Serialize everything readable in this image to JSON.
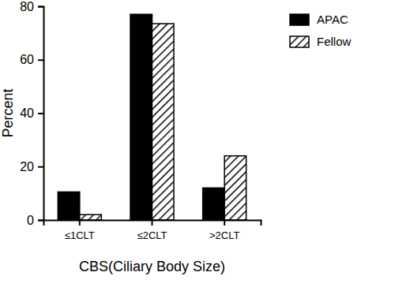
{
  "chart_data": {
    "type": "bar",
    "x_label": "CBS(Ciliary Body Size)",
    "y_label": "Percent",
    "categories": [
      "≤1CLT",
      "≤2CLT",
      ">2CLT"
    ],
    "series": [
      {
        "name": "APAC",
        "color": "#000000",
        "values": [
          10.5,
          77,
          12
        ]
      },
      {
        "name": "Fellow",
        "color": "#000000",
        "marker": "hatch",
        "values": [
          2,
          73.5,
          24
        ]
      }
    ],
    "ylim": [
      0,
      80
    ],
    "yticks": [
      0,
      20,
      40,
      60,
      80
    ],
    "grid": false,
    "legend": "right"
  }
}
